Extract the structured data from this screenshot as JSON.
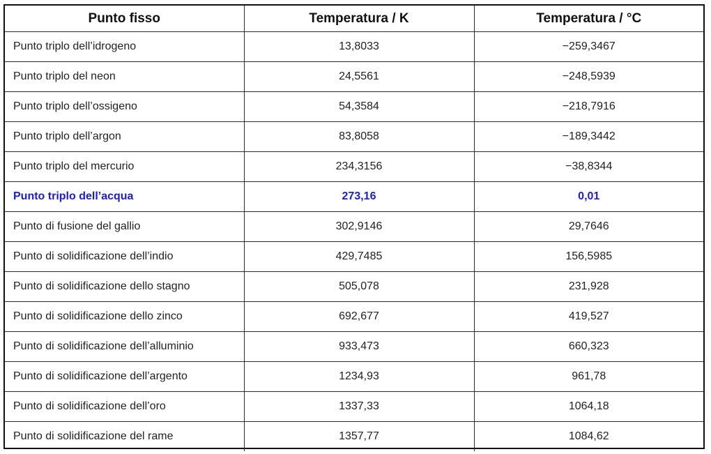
{
  "table": {
    "headers": [
      "Punto fisso",
      "Temperatura / K",
      "Temperatura / °C"
    ],
    "rows": [
      {
        "name": "Punto triplo dell’idrogeno",
        "kelvin": "13,8033",
        "celsius": "−259,3467"
      },
      {
        "name": "Punto triplo del neon",
        "kelvin": "24,5561",
        "celsius": "−248,5939"
      },
      {
        "name": "Punto triplo dell’ossigeno",
        "kelvin": "54,3584",
        "celsius": "−218,7916"
      },
      {
        "name": "Punto triplo dell’argon",
        "kelvin": "83,8058",
        "celsius": "−189,3442"
      },
      {
        "name": "Punto triplo del mercurio",
        "kelvin": "234,3156",
        "celsius": "−38,8344"
      },
      {
        "name": "Punto triplo dell’acqua",
        "kelvin": "273,16",
        "celsius": "0,01"
      },
      {
        "name": "Punto di fusione del gallio",
        "kelvin": "302,9146",
        "celsius": "29,7646"
      },
      {
        "name": "Punto di solidificazione dell’indio",
        "kelvin": "429,7485",
        "celsius": "156,5985"
      },
      {
        "name": "Punto di solidificazione dello stagno",
        "kelvin": "505,078",
        "celsius": "231,928"
      },
      {
        "name": "Punto di solidificazione dello zinco",
        "kelvin": "692,677",
        "celsius": "419,527"
      },
      {
        "name": "Punto di solidificazione dell’alluminio",
        "kelvin": "933,473",
        "celsius": "660,323"
      },
      {
        "name": "Punto di solidificazione dell’argento",
        "kelvin": "1234,93",
        "celsius": "961,78"
      },
      {
        "name": "Punto di solidificazione dell’oro",
        "kelvin": "1337,33",
        "celsius": "1064,18"
      },
      {
        "name": "Punto di solidificazione del rame",
        "kelvin": "1357,77",
        "celsius": "1084,62"
      }
    ]
  },
  "colors": {
    "highlight_text": "#1a1ae6",
    "border": "#2a2a2a",
    "text": "#222222"
  }
}
